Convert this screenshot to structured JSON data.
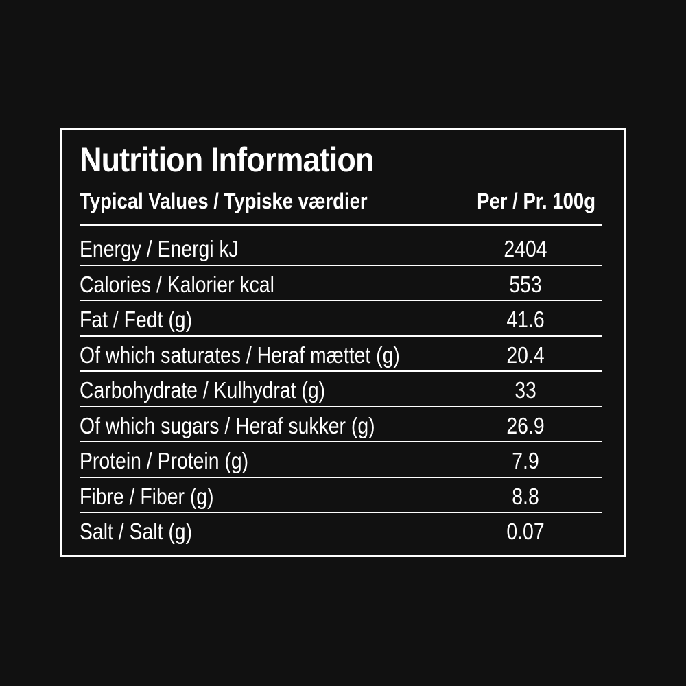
{
  "title": "Nutrition Information",
  "header": {
    "left": "Typical Values / Typiske værdier",
    "right": "Per / Pr. 100g"
  },
  "rows": [
    {
      "label": "Energy / Energi kJ",
      "value": "2404"
    },
    {
      "label": "Calories / Kalorier kcal",
      "value": "553"
    },
    {
      "label": "Fat / Fedt (g)",
      "value": "41.6"
    },
    {
      "label": "Of which saturates / Heraf mættet (g)",
      "value": "20.4"
    },
    {
      "label": "Carbohydrate / Kulhydrat (g)",
      "value": "33"
    },
    {
      "label": "Of which sugars / Heraf sukker (g)",
      "value": "26.9"
    },
    {
      "label": "Protein / Protein (g)",
      "value": "7.9"
    },
    {
      "label": "Fibre / Fiber (g)",
      "value": "8.8"
    },
    {
      "label": "Salt / Salt (g)",
      "value": "0.07"
    }
  ],
  "colors": {
    "background": "#111111",
    "foreground": "#ffffff"
  }
}
